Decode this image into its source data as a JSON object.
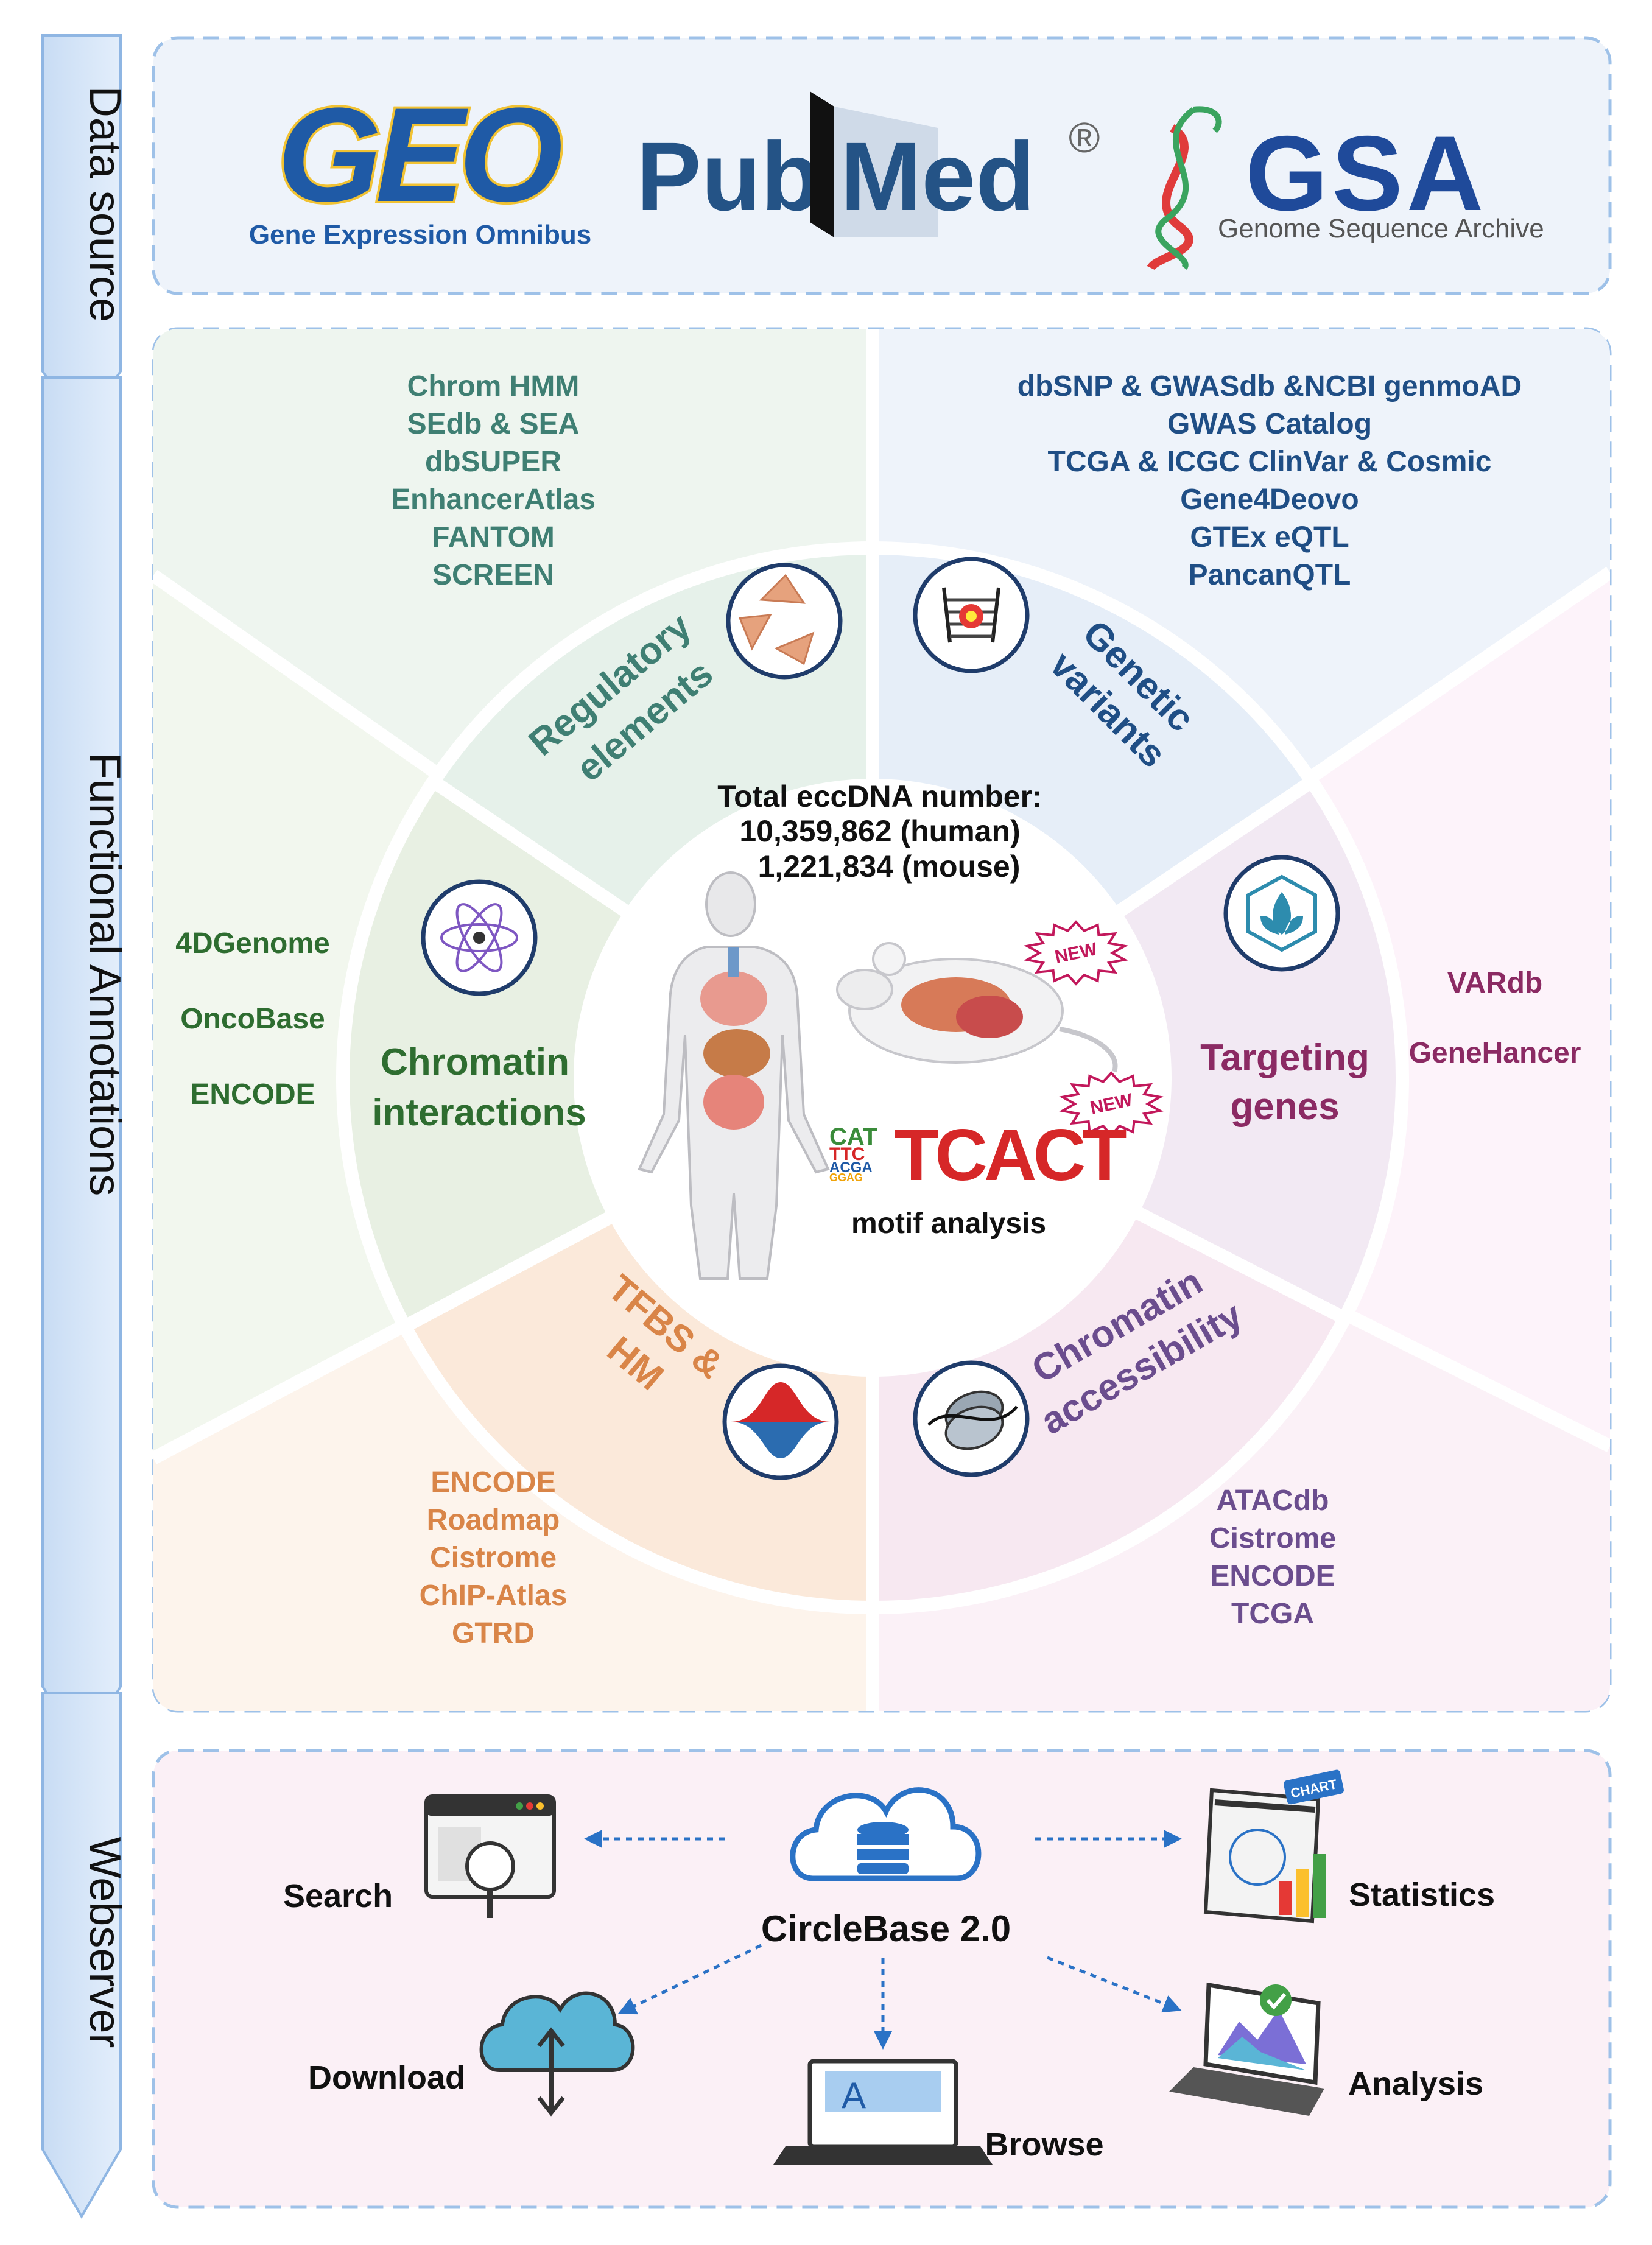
{
  "side_labels": {
    "data_source": "Data source",
    "functional_annotations": "Functional Annotations",
    "webserver": "Webserver"
  },
  "data_sources": {
    "geo": {
      "logo": "GEO",
      "caption": "Gene Expression Omnibus"
    },
    "pubmed": {
      "logo_left": "Pub",
      "logo_right": "Med",
      "mark": "®"
    },
    "gsa": {
      "logo": "GSA",
      "caption": "Genome Sequence Archive"
    }
  },
  "center": {
    "title": "Total eccDNA number:",
    "human": "10,359,862 (human)",
    "mouse": "1,221,834 (mouse)",
    "new_badge": "NEW",
    "motif_label": "motif analysis",
    "motif_logo": "TCACT",
    "motif_letters_small": [
      "CAT",
      "TTC",
      "ACGA",
      "GGAG"
    ]
  },
  "categories": {
    "regulatory": {
      "title_lines": [
        "Regulatory",
        "elements"
      ],
      "sources": [
        "Chrom HMM",
        "SEdb & SEA",
        "dbSUPER",
        "EnhancerAtlas",
        "FANTOM",
        "SCREEN"
      ]
    },
    "genetic": {
      "title_lines": [
        "Genetic",
        "variants"
      ],
      "sources": [
        "dbSNP & GWASdb &NCBI genmoAD",
        "GWAS Catalog",
        "TCGA & ICGC ClinVar & Cosmic",
        "Gene4Deovo",
        "GTEx eQTL",
        "PancanQTL"
      ]
    },
    "targeting": {
      "title_lines": [
        "Targeting",
        "genes"
      ],
      "sources": [
        "VARdb",
        "GeneHancer"
      ]
    },
    "accessibility": {
      "title_lines": [
        "Chromatin",
        "accessibility"
      ],
      "sources": [
        "ATACdb",
        "Cistrome",
        "ENCODE",
        "TCGA"
      ]
    },
    "tfbs": {
      "title_lines": [
        "TFBS &",
        "HM"
      ],
      "sources": [
        "ENCODE",
        "Roadmap",
        "Cistrome",
        "ChIP-Atlas",
        "GTRD"
      ]
    },
    "interactions": {
      "title_lines": [
        "Chromatin",
        "interactions"
      ],
      "sources": [
        "4DGenome",
        "OncoBase",
        "ENCODE"
      ]
    }
  },
  "webserver": {
    "hub": "CircleBase 2.0",
    "search": "Search",
    "statistics": "Statistics",
    "download": "Download",
    "browse": "Browse",
    "analysis": "Analysis",
    "chart_tag": "CHART",
    "screen_letter": "A"
  },
  "colors": {
    "regulatory": "#3f7f73",
    "genetic": "#1f4e85",
    "targeting": "#8b2a63",
    "accessibility": "#6b4d8e",
    "tfbs": "#d98548",
    "interactions": "#2e6d30",
    "panel_border": "#9ec1e8",
    "arrow": "#2a72c6"
  }
}
